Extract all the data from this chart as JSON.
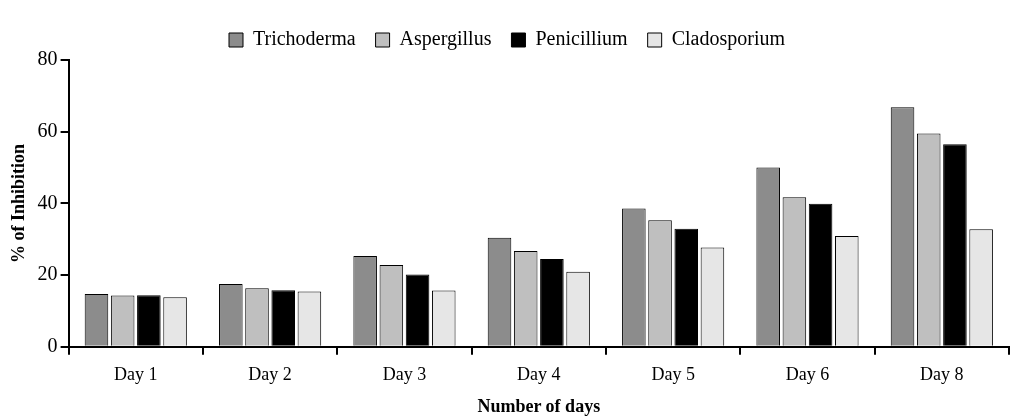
{
  "chart_data": {
    "type": "bar",
    "xlabel": "Number of days",
    "ylabel": "% of Inhibition",
    "categories": [
      "Day 1",
      "Day 2",
      "Day 3",
      "Day 4",
      "Day 5",
      "Day 6",
      "Day 8"
    ],
    "series": [
      {
        "name": "Trichoderma",
        "color": "#8c8c8c",
        "values": [
          14.7,
          17.5,
          25.3,
          30.4,
          38.6,
          50.0,
          66.8
        ]
      },
      {
        "name": "Aspergillus",
        "color": "#bfbfbf",
        "values": [
          14.3,
          16.3,
          22.8,
          26.7,
          35.3,
          41.7,
          59.5
        ]
      },
      {
        "name": "Penicillium",
        "color": "#000000",
        "values": [
          14.4,
          15.8,
          20.2,
          24.5,
          32.9,
          39.9,
          56.5
        ]
      },
      {
        "name": "Cladosporium",
        "color": "#e6e6e6",
        "values": [
          13.8,
          15.4,
          15.7,
          20.9,
          27.7,
          30.9,
          32.8
        ]
      }
    ],
    "ylim": [
      0,
      80
    ],
    "yticks": [
      0,
      20,
      40,
      60,
      80
    ],
    "grid": false,
    "legend": "top"
  }
}
